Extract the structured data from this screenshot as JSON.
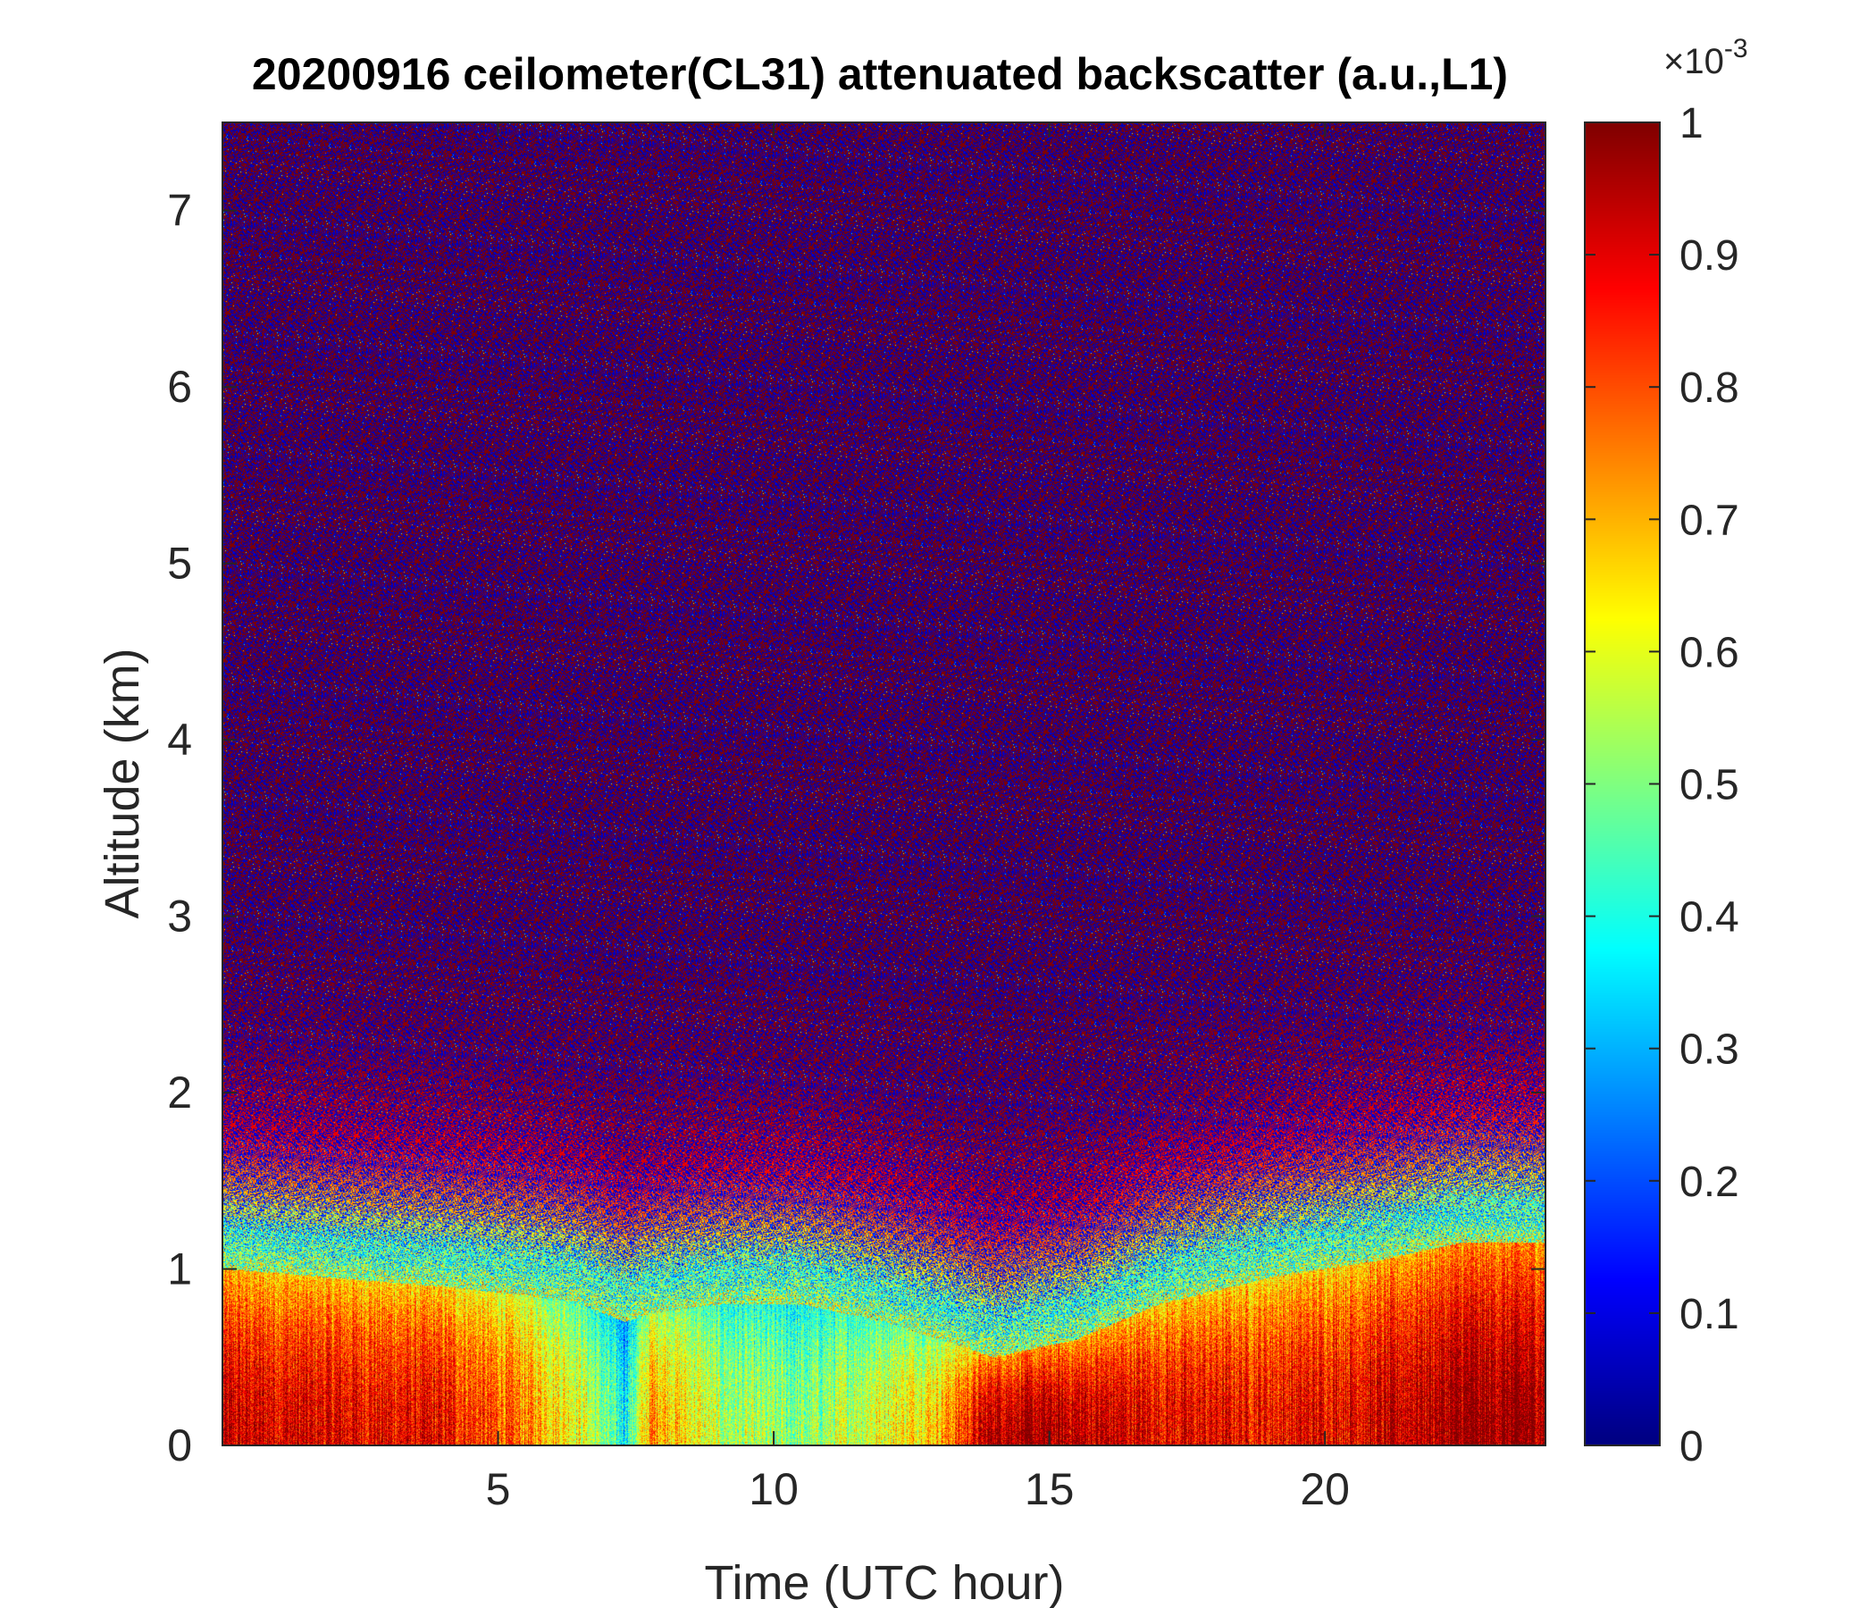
{
  "chart_data": {
    "type": "heatmap",
    "title": "20200916 ceilometer(CL31) attenuated backscatter (a.u.,L1)",
    "xlabel": "Time (UTC hour)",
    "ylabel": "Altitude (km)",
    "xlim": [
      0,
      24
    ],
    "ylim": [
      0,
      7.5
    ],
    "x_ticks": [
      5,
      10,
      15,
      20
    ],
    "y_ticks": [
      0,
      1,
      2,
      3,
      4,
      5,
      6,
      7
    ],
    "colorbar": {
      "range": [
        0,
        1
      ],
      "ticks": [
        0,
        0.1,
        0.2,
        0.3,
        0.4,
        0.5,
        0.6,
        0.7,
        0.8,
        0.9,
        1
      ],
      "tick_labels": [
        "0",
        "0.1",
        "0.2",
        "0.3",
        "0.4",
        "0.5",
        "0.6",
        "0.7",
        "0.8",
        "0.9",
        "1"
      ],
      "multiplier_base": "×10",
      "multiplier_exponent": "-3",
      "colormap": "jet"
    },
    "noise_level": 0.5,
    "layer_profile": {
      "description_time_h": [
        0,
        2,
        4,
        5.5,
        6.5,
        7.3,
        7.8,
        9,
        10.5,
        12,
        13,
        14,
        15.5,
        17,
        19,
        21,
        22.5,
        24
      ],
      "mixed_layer_top_km": [
        1.0,
        0.95,
        0.9,
        0.85,
        0.8,
        0.7,
        0.75,
        0.8,
        0.8,
        0.7,
        0.6,
        0.5,
        0.6,
        0.8,
        0.95,
        1.05,
        1.15,
        1.15
      ],
      "surface_value": [
        0.92,
        0.9,
        0.88,
        0.75,
        0.62,
        0.38,
        0.75,
        0.55,
        0.5,
        0.62,
        0.7,
        0.98,
        0.95,
        0.9,
        0.88,
        0.92,
        0.98,
        0.98
      ]
    }
  }
}
